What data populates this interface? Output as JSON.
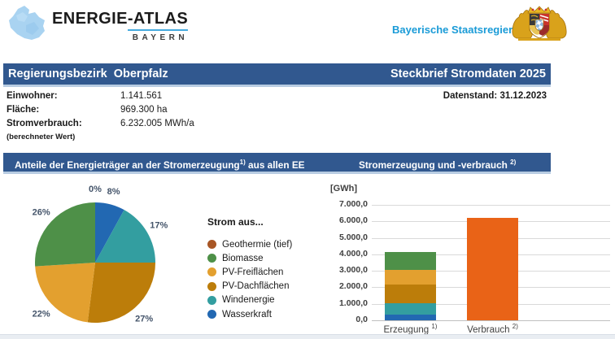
{
  "header": {
    "logo_title": "ENERGIE-ATLAS",
    "logo_subtitle": "BAYERN",
    "government": "Bayerische Staatsregierung"
  },
  "title_bar": {
    "left": "Regierungsbezirk  Oberpfalz",
    "right": "Steckbrief Stromdaten 2025"
  },
  "info": {
    "rows": [
      {
        "label": "Einwohner:",
        "value": "1.141.561"
      },
      {
        "label": "Fläche:",
        "value": "969.300 ha"
      },
      {
        "label": "Stromverbrauch:",
        "value": "6.232.005 MWh/a"
      }
    ],
    "note": "(berechneter Wert)",
    "data_status": "Datenstand: 31.12.2023"
  },
  "sections": {
    "pie_title": {
      "text": "Anteile der Energieträger an der Stromerzeugung",
      "sup": "1)",
      "suffix": "aus allen EE"
    },
    "bar_title": {
      "text": "Stromerzeugung und -verbrauch",
      "sup": "2)"
    }
  },
  "colors": {
    "header_bar_blue": "#31588F",
    "header_bar_edge": "#B8CCE2",
    "gov_text_blue": "#1A9BD7",
    "verbrauch_orange": "#E96317"
  },
  "chart_data": [
    {
      "type": "pie",
      "title": "Anteile der Energieträger an der Stromerzeugung aus allen EE",
      "legend_title": "Strom aus...",
      "legend_position": "right",
      "slices": [
        {
          "label": "Wasserkraft",
          "pct": 8,
          "color": "#2268B2"
        },
        {
          "label": "Windenergie",
          "pct": 17,
          "color": "#339EA0"
        },
        {
          "label": "PV-Dachflächen",
          "pct": 27,
          "color": "#BC7D0A"
        },
        {
          "label": "PV-Freiflächen",
          "pct": 22,
          "color": "#E3A02F"
        },
        {
          "label": "Biomasse",
          "pct": 26,
          "color": "#4E9048"
        },
        {
          "label": "Geothermie (tief)",
          "pct": 0,
          "color": "#A85625"
        }
      ],
      "legend_items": [
        {
          "label": "Geothermie (tief)",
          "color": "#A85625"
        },
        {
          "label": "Biomasse",
          "color": "#4E9048"
        },
        {
          "label": "PV-Freiflächen",
          "color": "#E3A02F"
        },
        {
          "label": "PV-Dachflächen",
          "color": "#BC7D0A"
        },
        {
          "label": "Windenergie",
          "color": "#339EA0"
        },
        {
          "label": "Wasserkraft",
          "color": "#2268B2"
        }
      ]
    },
    {
      "type": "bar",
      "title": "Stromerzeugung und -verbrauch",
      "unit": "[GWh]",
      "ylim": [
        0,
        7000
      ],
      "ytick_step": 1000,
      "ytick_labels": [
        "7.000,0",
        "6.000,0",
        "5.000,0",
        "4.000,0",
        "3.000,0",
        "2.000,0",
        "1.000,0",
        "0,0"
      ],
      "grid": true,
      "bars": [
        {
          "label": "Erzeugung",
          "sup": "1)",
          "total": 4149,
          "stack": [
            {
              "name": "Wasserkraft",
              "value": 332,
              "color": "#2268B2"
            },
            {
              "name": "Windenergie",
              "value": 705,
              "color": "#339EA0"
            },
            {
              "name": "PV-Dachflächen",
              "value": 1120,
              "color": "#BC7D0A"
            },
            {
              "name": "PV-Freiflächen",
              "value": 913,
              "color": "#E3A02F"
            },
            {
              "name": "Biomasse",
              "value": 1079,
              "color": "#4E9048"
            }
          ]
        },
        {
          "label": "Verbrauch",
          "sup": "2)",
          "total": 6232,
          "stack": [
            {
              "name": "Verbrauch",
              "value": 6232,
              "color": "#E96317"
            }
          ]
        }
      ]
    }
  ]
}
